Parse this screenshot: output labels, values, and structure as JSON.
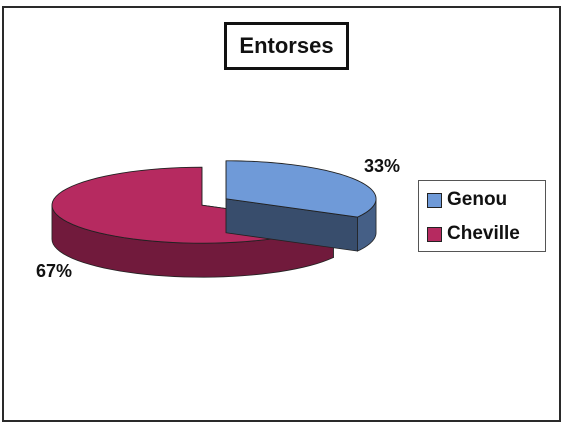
{
  "chart_data": {
    "type": "pie",
    "title": "Entorses",
    "categories": [
      "Genou",
      "Cheville"
    ],
    "values": [
      33,
      67
    ],
    "data_labels": [
      "33%",
      "67%"
    ],
    "colors": [
      "#6f9ad8",
      "#b62a60"
    ],
    "legend_placement": "right",
    "three_d": true,
    "exploded": true
  }
}
